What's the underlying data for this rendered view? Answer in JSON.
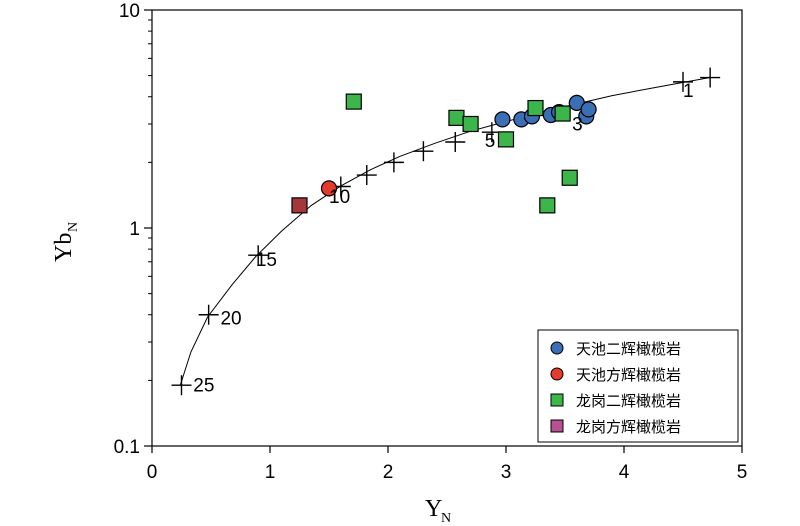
{
  "chart_data": {
    "type": "scatter",
    "title": "",
    "xlabel": "Y",
    "xlabel_sub": "N",
    "ylabel": "Yb",
    "ylabel_sub": "N",
    "xlim": [
      0,
      5
    ],
    "ylim": [
      0.1,
      10
    ],
    "yscale": "log",
    "grid": false,
    "legend_position": "bottom-right",
    "x_ticks": [
      0,
      1,
      2,
      3,
      4,
      5
    ],
    "x_tick_labels": [
      "0",
      "1",
      "2",
      "3",
      "4",
      "5"
    ],
    "y_ticks": [
      0.1,
      1,
      10
    ],
    "y_tick_labels": [
      "0.1",
      "1",
      "10"
    ],
    "series": [
      {
        "name": "天池二辉橄榄岩",
        "marker": "circle",
        "color": "#3a6fb5",
        "x": [
          2.97,
          3.13,
          3.22,
          3.38,
          3.45,
          3.6,
          3.68,
          3.7
        ],
        "y": [
          3.15,
          3.15,
          3.25,
          3.3,
          3.4,
          3.75,
          3.25,
          3.5
        ]
      },
      {
        "name": "天池方辉橄榄岩",
        "marker": "circle",
        "color": "#e53b2c",
        "x": [
          1.5
        ],
        "y": [
          1.52
        ]
      },
      {
        "name": "龙岗二辉橄榄岩",
        "marker": "square",
        "color": "#3cb54a",
        "x": [
          1.71,
          2.58,
          2.7,
          3.0,
          3.25,
          3.48,
          3.54,
          3.35
        ],
        "y": [
          3.8,
          3.2,
          3.0,
          2.55,
          3.55,
          3.35,
          1.7,
          1.27
        ]
      },
      {
        "name": "龙岗方辉橄榄岩",
        "marker": "square",
        "color": "#a3373a",
        "legend_color": "#b5528f",
        "x": [
          1.25
        ],
        "y": [
          1.27
        ]
      }
    ],
    "melting_curve": {
      "x": [
        0.24,
        0.33,
        0.47,
        0.68,
        0.88,
        1.1,
        1.35,
        1.6,
        1.85,
        2.1,
        2.4,
        2.7,
        3.0,
        3.4,
        3.9,
        4.3,
        4.73
      ],
      "y": [
        0.19,
        0.27,
        0.39,
        0.55,
        0.74,
        0.97,
        1.27,
        1.56,
        1.85,
        2.13,
        2.45,
        2.78,
        3.08,
        3.5,
        4.05,
        4.45,
        4.9
      ]
    },
    "melting_ticks": {
      "x": [
        0.25,
        0.48,
        0.9,
        1.6,
        1.82,
        2.05,
        2.3,
        2.57,
        2.88,
        4.5,
        4.73
      ],
      "y": [
        0.19,
        0.4,
        0.75,
        1.55,
        1.75,
        2.0,
        2.25,
        2.48,
        2.75,
        4.68,
        4.9
      ]
    },
    "annotations": [
      {
        "text": "1",
        "x": 4.5,
        "y": 4.0
      },
      {
        "text": "3",
        "x": 3.56,
        "y": 2.8
      },
      {
        "text": "5",
        "x": 2.82,
        "y": 2.35
      },
      {
        "text": "10",
        "x": 1.5,
        "y": 1.3
      },
      {
        "text": "15",
        "x": 0.88,
        "y": 0.67
      },
      {
        "text": "20",
        "x": 0.58,
        "y": 0.36
      },
      {
        "text": "25",
        "x": 0.35,
        "y": 0.178
      }
    ]
  }
}
